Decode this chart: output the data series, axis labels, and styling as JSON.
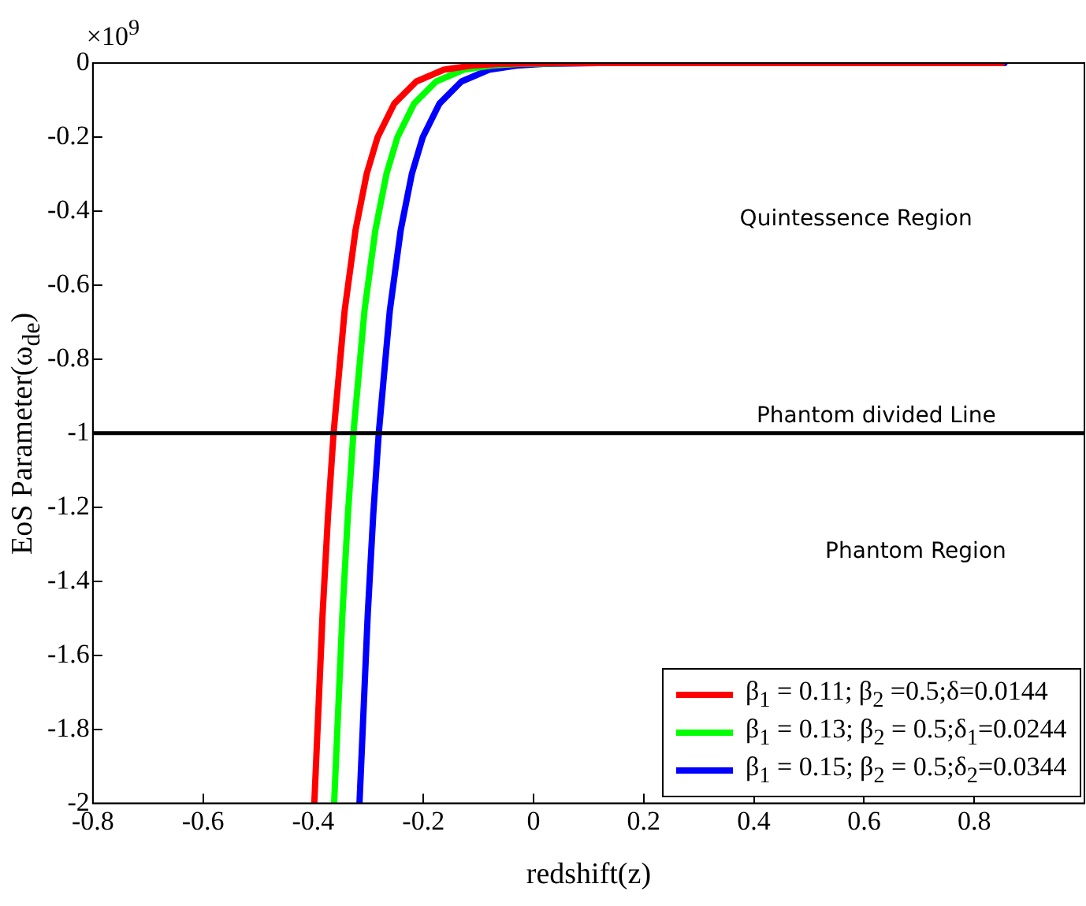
{
  "chart_data": {
    "type": "line",
    "xlabel": "redshift(z)",
    "ylabel": "EoS Parameter(ω$_{de}$)",
    "xlim": [
      -0.8,
      1.0
    ],
    "xticks": [
      -0.8,
      -0.6,
      -0.4,
      -0.2,
      0,
      0.2,
      0.4,
      0.6,
      0.8
    ],
    "ylim": [
      -2,
      0
    ],
    "yticks": [
      -2,
      -1.8,
      -1.6,
      -1.4,
      -1.2,
      -1,
      -0.8,
      -0.6,
      -0.4,
      -0.2,
      0
    ],
    "grid": false,
    "legend": "bottom right",
    "marker": "none",
    "line_style": "solid",
    "ref_lines": [
      {
        "axis": "y",
        "value": -1,
        "label": "Phantom divided Line",
        "color": "#000000"
      }
    ],
    "annotations": [
      "×10$^{9}$",
      "Quintessence Region",
      "Phantom Region"
    ],
    "series": [
      {
        "name": "β$_{1}$ = 0.11; β$_{2}$ =0.5;δ=0.0144",
        "color": "#ff0000",
        "x": [
          -0.398,
          -0.383,
          -0.373,
          -0.363,
          -0.343,
          -0.323,
          -0.303,
          -0.283,
          -0.253,
          -0.213,
          -0.163,
          -0.113,
          -0.063,
          0.037,
          0.85
        ],
        "values": [
          -2,
          -1.49,
          -1.22,
          -1,
          -0.67,
          -0.45,
          -0.3,
          -0.2,
          -0.11,
          -0.05,
          -0.018,
          -0.007,
          -0.002,
          0,
          0
        ]
      },
      {
        "name": "β$_{1}$ = 0.13; β$_{2}$ = 0.5;δ$_{1}$=0.0244",
        "color": "#00ff00",
        "x": [
          -0.362,
          -0.347,
          -0.337,
          -0.327,
          -0.307,
          -0.287,
          -0.267,
          -0.247,
          -0.217,
          -0.177,
          -0.127,
          -0.077,
          -0.027,
          0.073,
          0.85
        ],
        "values": [
          -2,
          -1.49,
          -1.22,
          -1,
          -0.67,
          -0.45,
          -0.3,
          -0.2,
          -0.11,
          -0.05,
          -0.018,
          -0.007,
          -0.002,
          0,
          0
        ]
      },
      {
        "name": "β$_{1}$ = 0.15; β$_{2}$ = 0.5;δ$_{2}$=0.0344",
        "color": "#0000ff",
        "x": [
          -0.316,
          -0.301,
          -0.291,
          -0.281,
          -0.261,
          -0.241,
          -0.221,
          -0.201,
          -0.171,
          -0.131,
          -0.081,
          -0.031,
          0.019,
          0.119,
          0.855
        ],
        "values": [
          -2,
          -1.49,
          -1.22,
          -1,
          -0.67,
          -0.45,
          -0.3,
          -0.2,
          -0.11,
          -0.05,
          -0.018,
          -0.007,
          -0.002,
          0,
          0
        ]
      }
    ]
  }
}
